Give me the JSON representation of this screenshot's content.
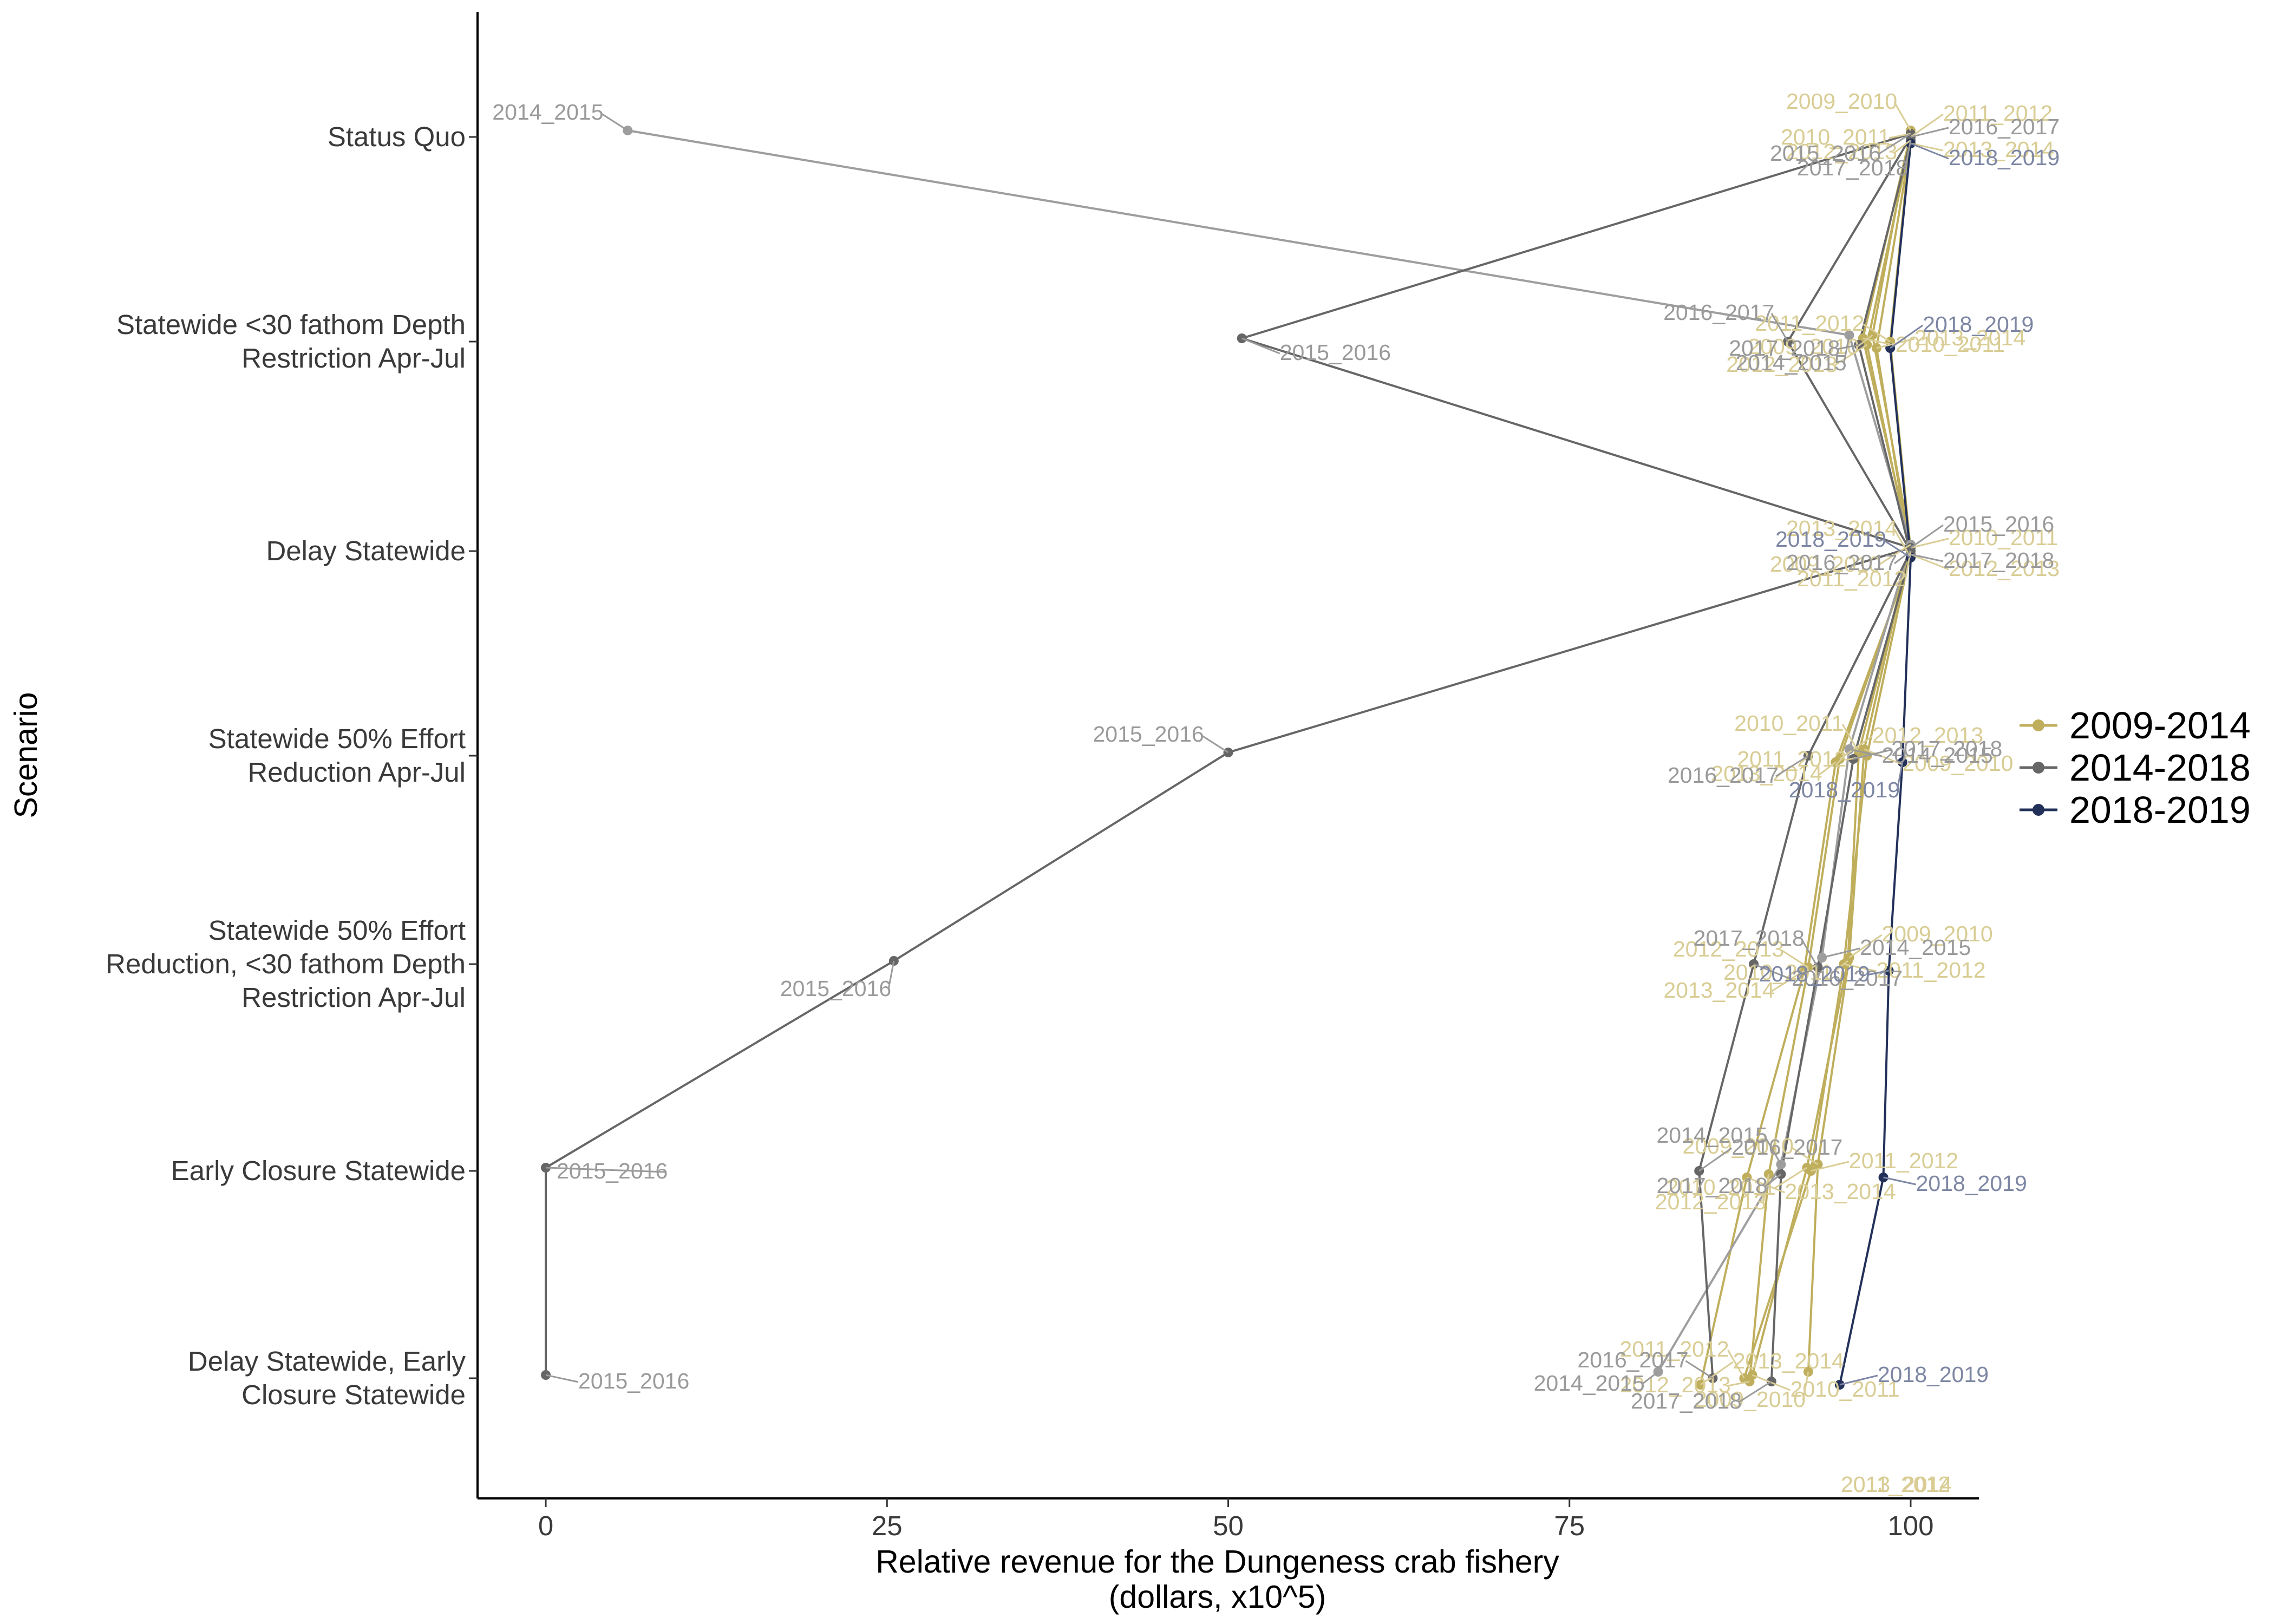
{
  "chart_data": {
    "type": "line",
    "title": "",
    "xlabel": [
      "Relative revenue for the Dungeness crab fishery",
      "(dollars, x10^5)"
    ],
    "ylabel": "Scenario",
    "xlim": [
      -5,
      105
    ],
    "x_ticks": [
      0,
      25,
      50,
      75,
      100
    ],
    "categories": [
      [
        "Status Quo"
      ],
      [
        "Statewide <30 fathom Depth",
        "Restriction Apr-Jul"
      ],
      [
        "Delay Statewide"
      ],
      [
        "Statewide 50% Effort",
        "Reduction Apr-Jul"
      ],
      [
        "Statewide 50% Effort",
        "Reduction, <30 fathom Depth",
        "Restriction Apr-Jul"
      ],
      [
        "Early Closure Statewide"
      ],
      [
        "Delay Statewide, Early",
        "Closure Statewide"
      ]
    ],
    "grid": false,
    "legend_position": "right",
    "legend": [
      "2009-2014",
      "2014-2018",
      "2018-2019"
    ],
    "colors": {
      "2009-2014": "#bfae5c",
      "2014-2018": "#666666",
      "2014-2018-light": "#9e9e9e",
      "2018-2019": "#22305a"
    },
    "series": [
      {
        "season": "2009_2010",
        "period": "2009-2014",
        "values": [
          100,
          97.2,
          100,
          96.6,
          95.5,
          93.2,
          92.5
        ],
        "labels": [
          "2009_2010",
          "2009_2010",
          "2009_2010",
          "2009_2010",
          "2009_2010",
          "2009_2010",
          "2009_2010"
        ]
      },
      {
        "season": "2010_2011",
        "period": "2009-2014",
        "values": [
          100,
          96.5,
          100,
          96.2,
          95.4,
          92.4,
          88.4
        ],
        "labels": [
          "2010_2011",
          "2010_2011",
          "2010_2011",
          "2010_2011",
          "2010_2011",
          "2010_2011",
          "2010_2011"
        ]
      },
      {
        "season": "2011_2012",
        "period": "2009-2014",
        "values": [
          100,
          98.5,
          100,
          96.8,
          95.1,
          92.7,
          87.8
        ],
        "labels": [
          "2011_2012",
          "2011_2012",
          "2011_2012",
          "2011_2012",
          "2011_2012",
          "2011_2012",
          "2011_2012"
        ]
      },
      {
        "season": "2012_2013",
        "period": "2009-2014",
        "values": [
          100,
          96.8,
          100,
          94.8,
          92.5,
          89.6,
          88.2
        ],
        "labels": [
          "2012_2013",
          "2012_2013",
          "2012_2013",
          "2012_2013",
          "2012_2013",
          "2012_2013",
          "2012_2013"
        ]
      },
      {
        "season": "2013_2014",
        "period": "2009-2014",
        "values": [
          100,
          97.5,
          100,
          94.5,
          92.2,
          88.0,
          84.6
        ],
        "labels": [
          "2013_2014",
          "2013_2014",
          "2013_2014",
          "2013_2014",
          "2013_2014",
          "2013_2014",
          "2013_2014"
        ]
      },
      {
        "season": "2014_2015",
        "period": "2014-2018-light",
        "values": [
          6,
          95.5,
          100,
          95.5,
          93.5,
          90.5,
          81.5
        ],
        "labels": [
          "2014_2015",
          "2014_2015",
          "",
          "2014_2015",
          "2014_2015",
          "2014_2015",
          "2014_2015"
        ]
      },
      {
        "season": "2015_2016",
        "period": "2014-2018",
        "values": [
          100,
          51,
          100,
          50,
          25.5,
          0,
          0
        ],
        "labels": [
          "2015_2016",
          "2015_2016",
          "2015_2016",
          "2015_2016",
          "2015_2016",
          "2015_2016",
          "2015_2016"
        ]
      },
      {
        "season": "2016_2017",
        "period": "2014-2018",
        "values": [
          100,
          91,
          100,
          92.5,
          88.5,
          84.5,
          85.5
        ],
        "labels": [
          "2016_2017",
          "2016_2017",
          "2016_2017",
          "2016_2017",
          "2016_2017",
          "2016_2017",
          "2016_2017"
        ]
      },
      {
        "season": "2017_2018",
        "period": "2014-2018",
        "values": [
          100,
          96.2,
          100,
          95.8,
          93.2,
          90.5,
          89.8
        ],
        "labels": [
          "2017_2018",
          "2017_2018",
          "2017_2018",
          "2017_2018",
          "2017_2018",
          "2017_2018",
          "2017_2018"
        ]
      },
      {
        "season": "2018_2019",
        "period": "2018-2019",
        "values": [
          100,
          98.5,
          100,
          99.4,
          98.4,
          98.0,
          94.8
        ],
        "labels": [
          "2018_2019",
          "2018_2019",
          "2018_2019",
          "2018_2019",
          "2018_2019",
          "2018_2019",
          "2018_2019"
        ]
      }
    ],
    "extra_labels": [
      "2011_2012",
      "2013_2014"
    ]
  }
}
